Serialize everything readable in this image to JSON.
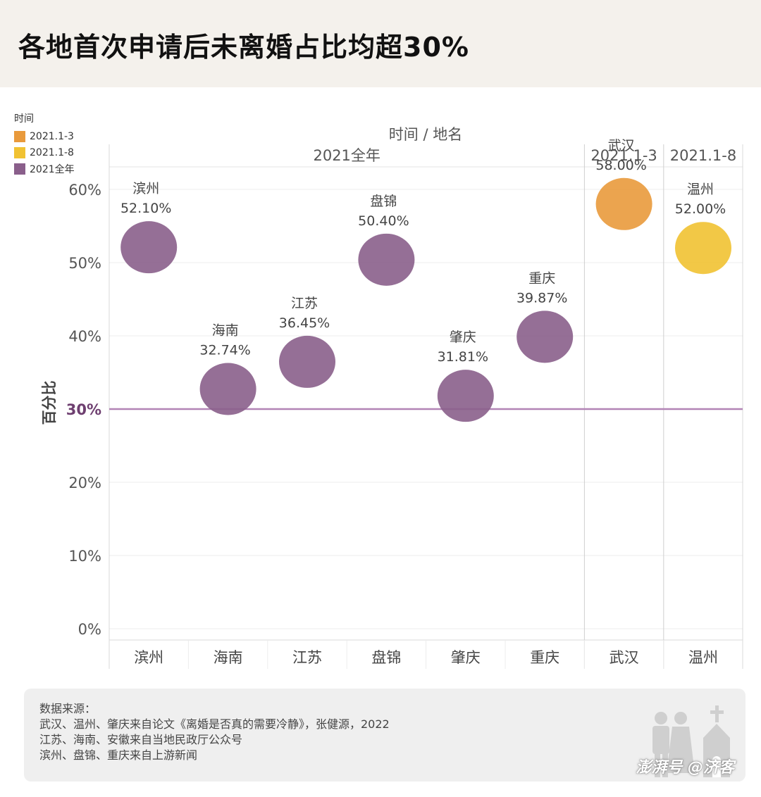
{
  "title": "各地首次申请后未离婚占比均超30%",
  "legend": {
    "title": "时间",
    "items": [
      {
        "label": "2021.1-3",
        "color": "#e99a3c"
      },
      {
        "label": "2021.1-8",
        "color": "#f1c232"
      },
      {
        "label": "2021全年",
        "color": "#8a5f8b"
      }
    ]
  },
  "chart_data": {
    "type": "scatter",
    "title": "时间 / 地名",
    "xlabel": "",
    "ylabel": "百分比",
    "ylim": [
      0,
      65
    ],
    "yticks": [
      "0%",
      "10%",
      "20%",
      "30%",
      "40%",
      "50%",
      "60%"
    ],
    "ytick_values": [
      0,
      10,
      20,
      30,
      40,
      50,
      60
    ],
    "reference_line": {
      "value": 30,
      "label": "30%",
      "color": "#b284b6"
    },
    "panels": [
      {
        "name": "2021全年",
        "color": "#8a5f8b",
        "categories": [
          "滨州",
          "海南",
          "江苏",
          "盘锦",
          "肇庆",
          "重庆"
        ],
        "values": [
          52.1,
          32.74,
          36.45,
          50.4,
          31.81,
          39.87
        ],
        "labels": [
          "52.10%",
          "32.74%",
          "36.45%",
          "50.40%",
          "31.81%",
          "39.87%"
        ]
      },
      {
        "name": "2021.1-3",
        "color": "#e99a3c",
        "categories": [
          "武汉"
        ],
        "values": [
          58.0
        ],
        "labels": [
          "58.00%"
        ]
      },
      {
        "name": "2021.1-8",
        "color": "#f1c232",
        "categories": [
          "温州"
        ],
        "values": [
          52.0
        ],
        "labels": [
          "52.00%"
        ]
      }
    ]
  },
  "source": {
    "heading": "数据来源：",
    "lines": [
      "武汉、温州、肇庆来自论文《离婚是否真的需要冷静》，张健源，2022",
      "江苏、海南、安徽来自当地民政厅公众号",
      "滨州、盘锦、重庆来自上游新闻"
    ]
  },
  "watermark": "澎湃号 @济客"
}
